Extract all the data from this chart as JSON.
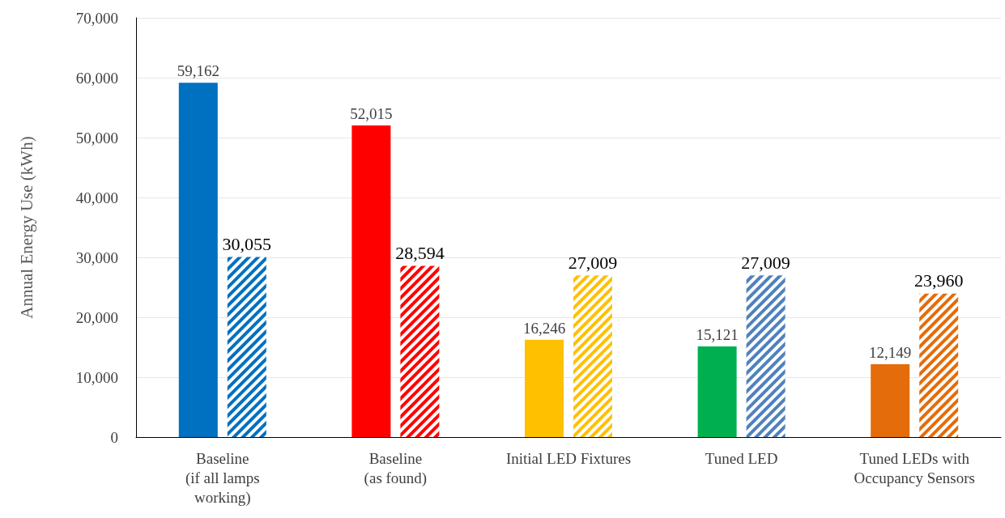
{
  "chart_data": {
    "type": "bar",
    "ylabel": "Annual Energy Use (kWh)",
    "categories": [
      "Baseline\n(if all lamps\nworking)",
      "Baseline\n(as found)",
      "Initial LED Fixtures",
      "Tuned LED",
      "Tuned LEDs with\nOccupancy Sensors"
    ],
    "series": [
      {
        "colors": [
          "#0070c0",
          "#ff0000",
          "#ffc000",
          "#00b050",
          "#e46c0a"
        ],
        "values": [
          59162,
          52015,
          16246,
          15121,
          12149
        ],
        "value_labels": [
          "59,162",
          "52,015",
          "16,246",
          "15,121",
          "12,149"
        ]
      },
      {
        "colors": [
          "#0070c0",
          "#ff0000",
          "#ffc000",
          "#4f81bd",
          "#e46c0a"
        ],
        "values": [
          30055,
          28594,
          27009,
          27009,
          23960
        ],
        "value_labels": [
          "30,055",
          "28,594",
          "27,009",
          "27,009",
          "23,960"
        ]
      }
    ],
    "ylim": [
      0,
      70000
    ],
    "yticks": [
      {
        "value": 0,
        "label": "0"
      },
      {
        "value": 10000,
        "label": "10,000"
      },
      {
        "value": 20000,
        "label": "20,000"
      },
      {
        "value": 30000,
        "label": "30,000"
      },
      {
        "value": 40000,
        "label": "40,000"
      },
      {
        "value": 50000,
        "label": "50,000"
      },
      {
        "value": 60000,
        "label": "60,000"
      },
      {
        "value": 70000,
        "label": "70,000"
      }
    ],
    "grid": "y"
  }
}
